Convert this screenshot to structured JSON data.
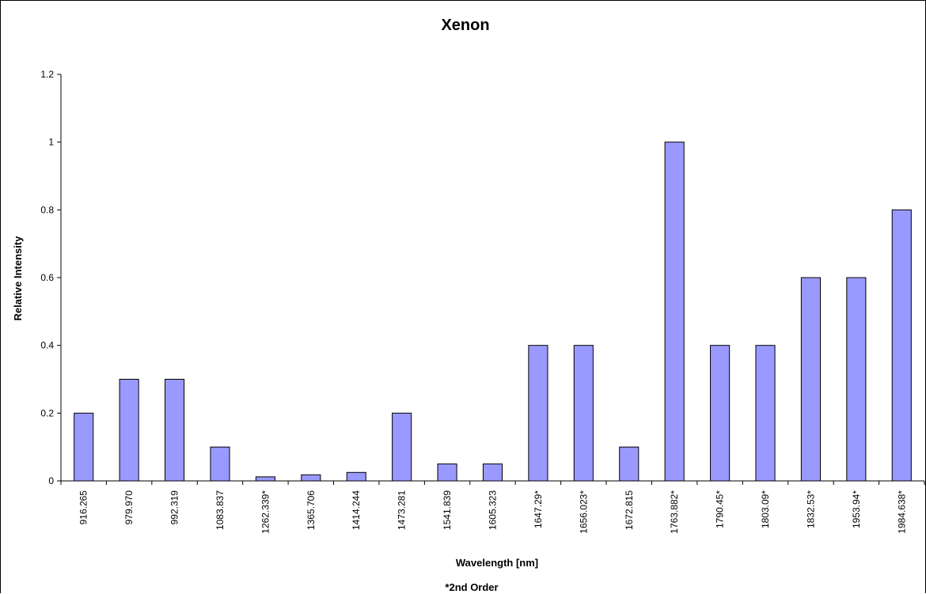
{
  "chart_data": {
    "type": "bar",
    "title": "Xenon",
    "xlabel": "Wavelength [nm]",
    "ylabel": "Relative Intensity",
    "footnote": "*2nd Order",
    "ylim": [
      0,
      1.2
    ],
    "yticks": [
      "0",
      "0.2",
      "0.4",
      "0.6",
      "0.8",
      "1",
      "1.2"
    ],
    "grid": false,
    "legend": "none",
    "bar_color": "#9999ff",
    "categories": [
      "916.265",
      "979.970",
      "992.319",
      "1083.837",
      "1262.339*",
      "1365.706",
      "1414.244",
      "1473.281",
      "1541.839",
      "1605.323",
      "1647.29*",
      "1656.023*",
      "1672.815",
      "1763.882*",
      "1790.45*",
      "1803.09*",
      "1832.53*",
      "1953.94*",
      "1984.638*"
    ],
    "values": [
      0.2,
      0.3,
      0.3,
      0.1,
      0.012,
      0.018,
      0.025,
      0.2,
      0.05,
      0.05,
      0.4,
      0.4,
      0.1,
      1.0,
      0.4,
      0.4,
      0.6,
      0.6,
      0.8
    ]
  }
}
